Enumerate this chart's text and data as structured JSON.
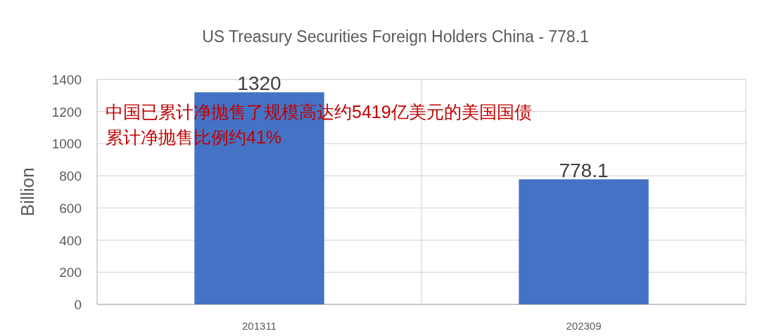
{
  "chart_data": {
    "type": "bar",
    "title": "US Treasury Securities Foreign Holders China -  778.1",
    "ylabel": "Billion",
    "categories": [
      "201311",
      "202309"
    ],
    "values": [
      1320,
      778.1
    ],
    "color": "#4472c4",
    "data_labels": true,
    "ylim": [
      0,
      1400
    ],
    "yticks": [
      0,
      200,
      400,
      600,
      800,
      1000,
      1200,
      1400
    ],
    "grid": true,
    "annotations": [
      "中国已累计净抛售了规模高达约5419亿美元的美国国债",
      "累计净抛售比例约41%"
    ]
  }
}
